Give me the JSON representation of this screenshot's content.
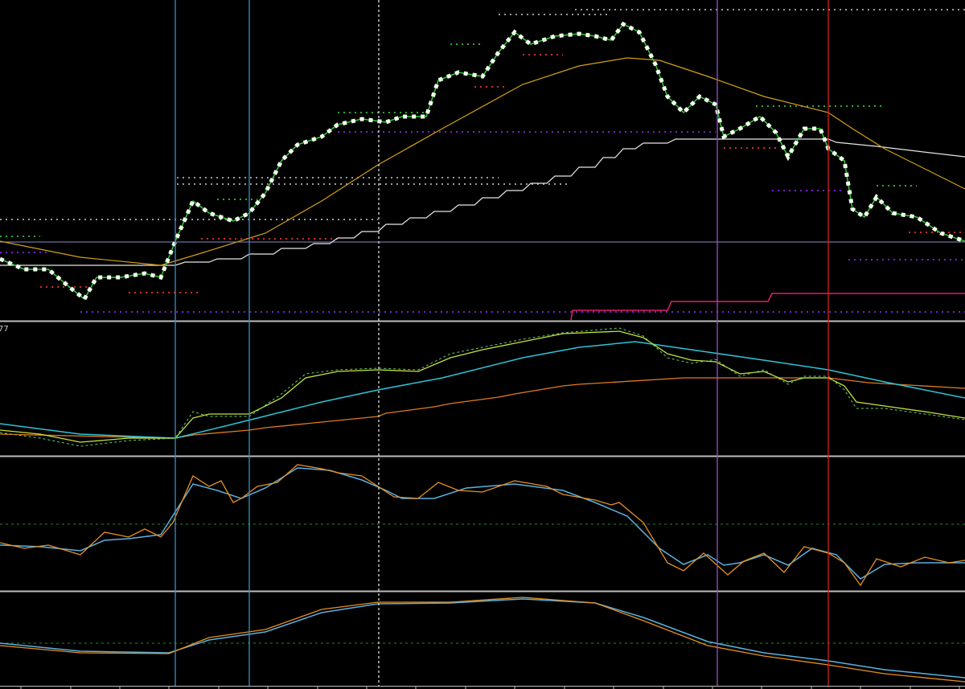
{
  "panes": [
    {
      "label": "77"
    }
  ]
}
